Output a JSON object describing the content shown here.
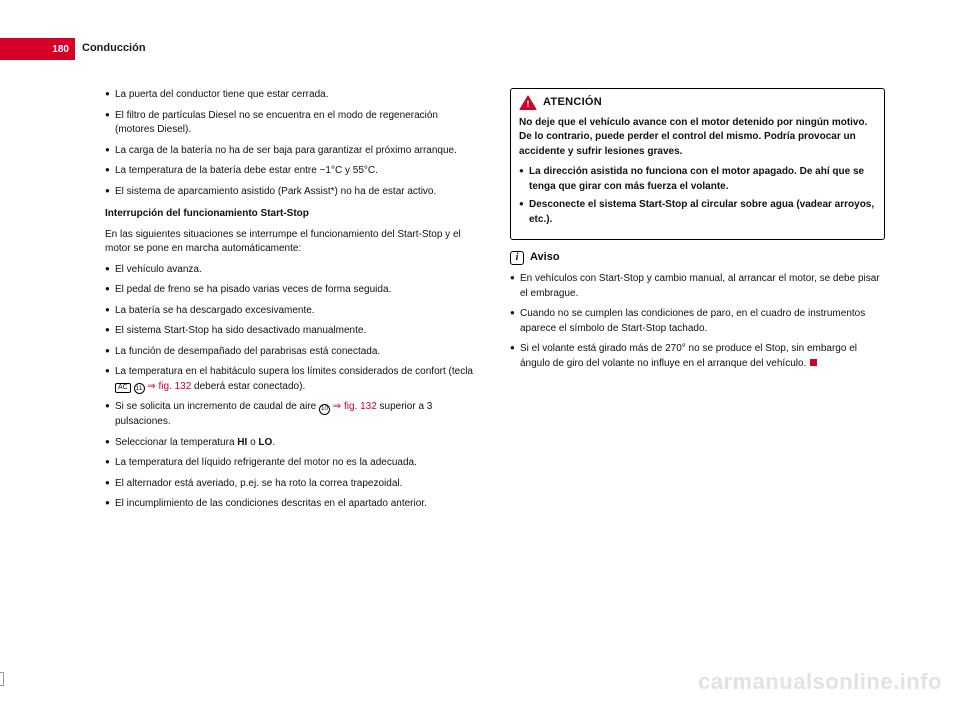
{
  "colors": {
    "accent": "#d40028",
    "text": "#111111",
    "bg": "#ffffff",
    "watermark": "#e2e2e2"
  },
  "page": {
    "number": "180",
    "section": "Conducción"
  },
  "left": {
    "bullets_a": [
      "La puerta del conductor tiene que estar cerrada.",
      "El filtro de partículas Diesel no se encuentra en el modo de regeneración (motores Diesel).",
      "La carga de la batería no ha de ser baja para garantizar el próximo arranque.",
      "La temperatura de la batería debe estar entre −1°C y 55°C.",
      "El sistema de aparcamiento asistido (Park Assist*) no ha de estar activo."
    ],
    "subhead": "Interrupción del funcionamiento Start-Stop",
    "intro": "En las siguientes situaciones se interrumpe el funcionamiento del Start-Stop y el motor se pone en marcha automáticamente:",
    "bullets_b": [
      "El vehículo avanza.",
      "El pedal de freno se ha pisado varias veces de forma seguida.",
      "La batería se ha descargado excesivamente.",
      "El sistema Start-Stop ha sido desactivado manualmente.",
      "La función de desempañado del parabrisas está conectada."
    ],
    "b6_pre": "La temperatura en el habitáculo supera los límites considerados de confort (tecla ",
    "b6_chip": "AC",
    "b6_circ": "11",
    "b6_link": " ⇒ fig. 132",
    "b6_post": " deberá estar conectado).",
    "b7_pre": "Si se solicita un incremento de caudal de aire ",
    "b7_circ": "10",
    "b7_link": " ⇒ fig. 132",
    "b7_post": " superior a 3 pulsaciones.",
    "b8_pre": "Seleccionar la temperatura ",
    "b8_hi": "HI",
    "b8_or": " o ",
    "b8_lo": "LO",
    "b8_post": ".",
    "bullets_c": [
      "La temperatura del líquido refrigerante del motor no es la adecuada.",
      "El alternador está averiado, p.ej. se ha roto la correa trapezoidal.",
      "El incumplimiento de las condiciones descritas en el apartado anterior."
    ]
  },
  "right": {
    "warn_title": "ATENCIÓN",
    "warn_para": "No deje que el vehículo avance con el motor detenido por ningún motivo. De lo contrario, puede perder el control del mismo. Podría provocar un accidente y sufrir lesiones graves.",
    "warn_bullets": [
      "La dirección asistida no funciona con el motor apagado. De ahí que se tenga que girar con más fuerza el volante.",
      "Desconecte el sistema Start-Stop al circular sobre agua (vadear arroyos, etc.)."
    ],
    "note_title": "Aviso",
    "note_bullets": [
      "En vehículos con Start-Stop y cambio manual, al arrancar el motor, se debe pisar el embrague.",
      "Cuando no se cumplen las condiciones de paro, en el cuadro de instrumentos aparece el símbolo de Start-Stop tachado.",
      "Si el volante está girado más de 270° no se produce el Stop, sin embargo el ángulo de giro del volante no influye en el arranque del vehículo."
    ]
  },
  "watermark": "carmanualsonline.info"
}
